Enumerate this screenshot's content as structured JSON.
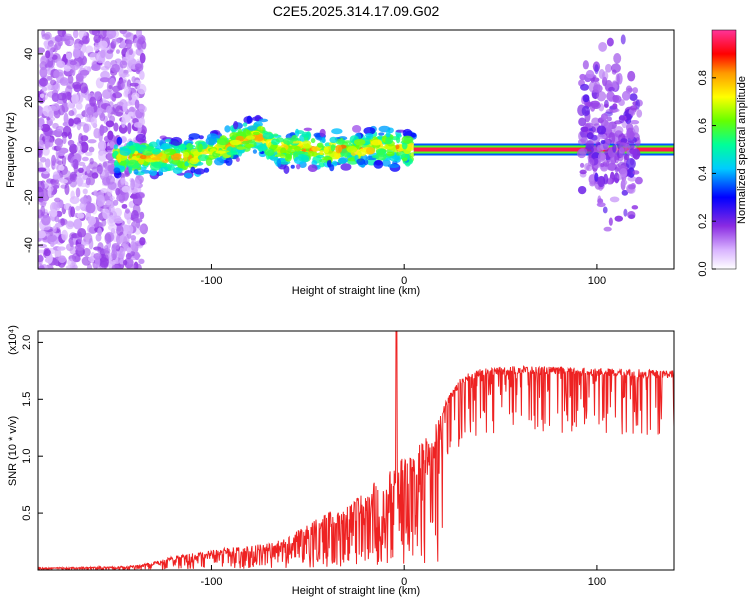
{
  "title": "C2E5.2025.314.17.09.G02",
  "chart_data": [
    {
      "type": "heatmap",
      "title": "C2E5.2025.314.17.09.G02",
      "xlabel": "Height of straight line (km)",
      "ylabel": "Frequency (Hz)",
      "xlim": [
        -190,
        140
      ],
      "ylim": [
        -50,
        50
      ],
      "xticks": [
        -100,
        0,
        100
      ],
      "yticks": [
        -40,
        -20,
        0,
        20,
        40
      ],
      "colorbar": {
        "label": "Normalized spectral amplitude",
        "range": [
          0,
          1
        ],
        "ticks": [
          0.0,
          0.2,
          0.4,
          0.6,
          0.8
        ]
      },
      "regions": [
        {
          "name": "broadband-noise",
          "x_range": [
            -190,
            -135
          ],
          "y_range": [
            -50,
            50
          ],
          "amplitude": 0.1
        },
        {
          "name": "wandering-signal",
          "x_range": [
            -150,
            5
          ],
          "center_freq": [
            [
              -150,
              -4
            ],
            [
              -130,
              -3
            ],
            [
              -110,
              -3
            ],
            [
              -95,
              0
            ],
            [
              -85,
              4
            ],
            [
              -75,
              6
            ],
            [
              -65,
              0
            ],
            [
              -55,
              1
            ],
            [
              -45,
              -1
            ],
            [
              -35,
              0
            ],
            [
              -25,
              0
            ],
            [
              -15,
              1
            ],
            [
              -5,
              1
            ],
            [
              0,
              0
            ],
            [
              5,
              0
            ]
          ],
          "amplitude": 0.45
        },
        {
          "name": "steady-tone",
          "x_range": [
            5,
            140
          ],
          "center_freq": [
            [
              5,
              0
            ],
            [
              140,
              0
            ]
          ],
          "amplitude": 0.95
        },
        {
          "name": "burst-interference",
          "x_range": [
            92,
            122
          ],
          "y_range": [
            -30,
            40
          ],
          "amplitude": 0.15
        }
      ]
    },
    {
      "type": "line",
      "xlabel": "Height of straight line (km)",
      "ylabel": "SNR (10 * v/v)",
      "y_multiplier": "(x10⁴)",
      "xlim": [
        -190,
        140
      ],
      "ylim": [
        0,
        2.1
      ],
      "xticks": [
        -100,
        0,
        100
      ],
      "yticks": [
        0.5,
        1.0,
        1.5,
        2.0
      ],
      "color": "#ee2222",
      "trend": {
        "x": [
          -190,
          -150,
          -140,
          -130,
          -120,
          -110,
          -100,
          -90,
          -80,
          -70,
          -60,
          -50,
          -40,
          -30,
          -20,
          -10,
          0,
          10,
          20,
          25,
          30,
          40,
          60,
          80,
          100,
          120,
          140
        ],
        "y": [
          0.02,
          0.03,
          0.04,
          0.07,
          0.12,
          0.15,
          0.18,
          0.2,
          0.21,
          0.24,
          0.3,
          0.4,
          0.5,
          0.58,
          0.7,
          0.85,
          1.0,
          1.15,
          1.4,
          1.55,
          1.67,
          1.74,
          1.76,
          1.75,
          1.74,
          1.73,
          1.72
        ]
      },
      "peak": {
        "x": -4,
        "y": 2.1
      }
    }
  ]
}
